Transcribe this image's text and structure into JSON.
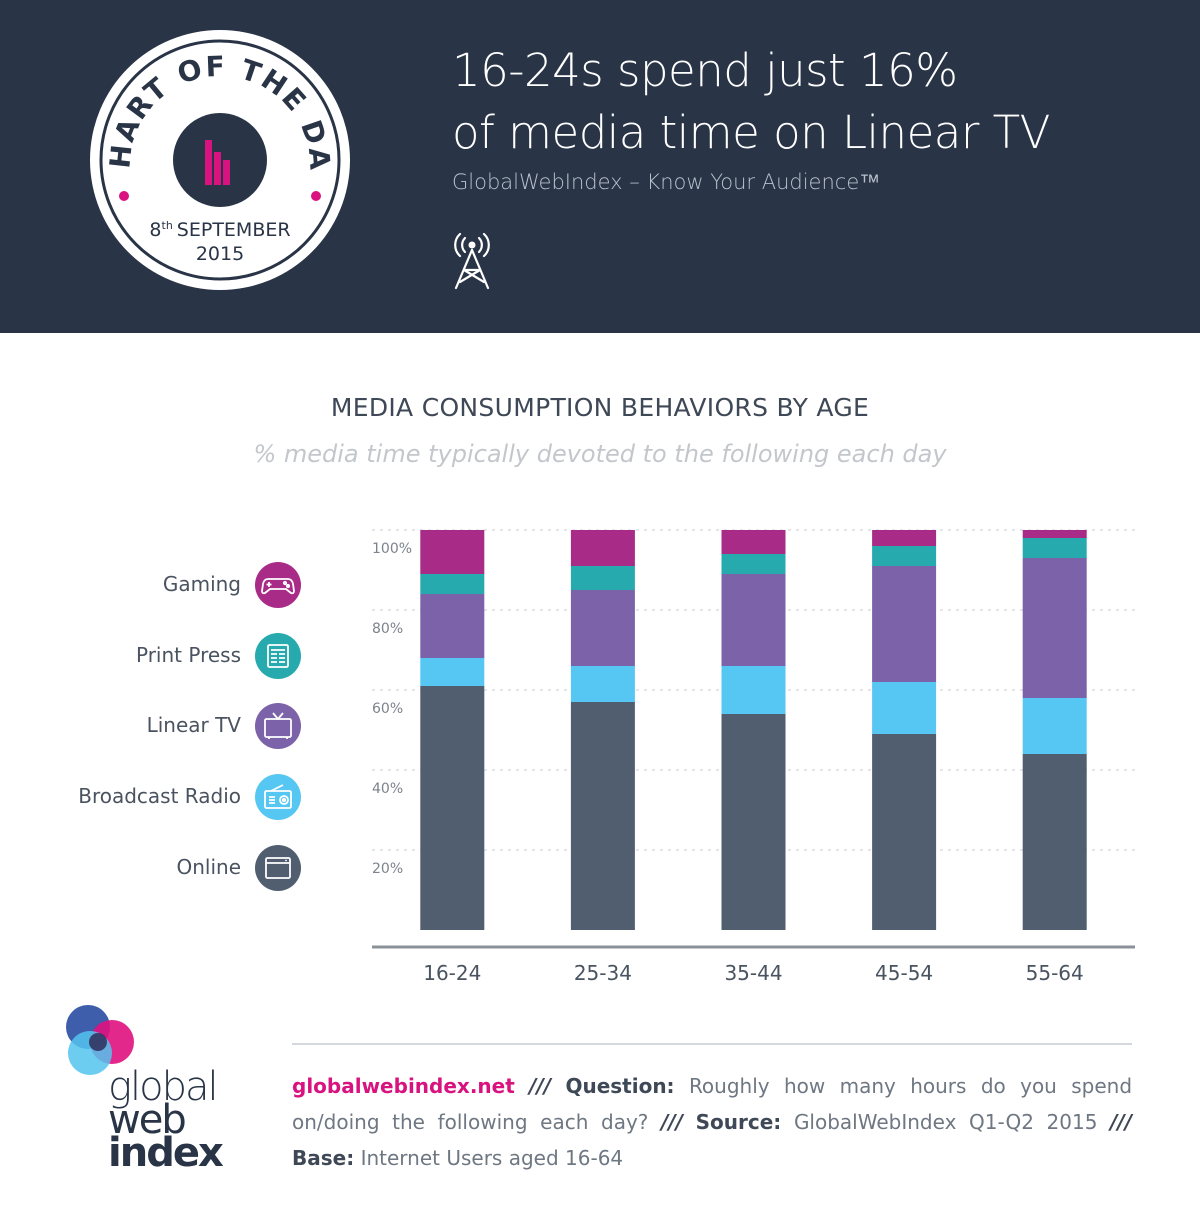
{
  "header": {
    "badge": {
      "ring_text": "CHART OF THE DAY",
      "date_day": "8",
      "date_suffix": "th",
      "date_month": "SEPTEMBER",
      "date_year": "2015"
    },
    "headline_line1": "16-24s spend just 16%",
    "headline_line2": "of media time on Linear TV",
    "tagline": "GlobalWebIndex – Know Your Audience™",
    "icon": "broadcast-tower-icon"
  },
  "chart_data": {
    "type": "bar",
    "stacked": true,
    "title": "MEDIA CONSUMPTION BEHAVIORS BY AGE",
    "subtitle": "% media time typically devoted to the following each day",
    "categories": [
      "16-24",
      "25-34",
      "35-44",
      "45-54",
      "55-64"
    ],
    "series": [
      {
        "name": "Online",
        "color": "#515e6f",
        "icon": "browser-window-icon",
        "values": [
          61,
          57,
          54,
          49,
          44
        ]
      },
      {
        "name": "Broadcast Radio",
        "color": "#56c7f2",
        "icon": "radio-icon",
        "values": [
          7,
          9,
          12,
          13,
          14
        ]
      },
      {
        "name": "Linear TV",
        "color": "#7b62a9",
        "icon": "tv-icon",
        "values": [
          16,
          19,
          23,
          29,
          35
        ]
      },
      {
        "name": "Print Press",
        "color": "#27aaae",
        "icon": "newspaper-icon",
        "values": [
          5,
          6,
          5,
          5,
          5
        ]
      },
      {
        "name": "Gaming",
        "color": "#a82c87",
        "icon": "gamepad-icon",
        "values": [
          11,
          9,
          6,
          4,
          2
        ]
      }
    ],
    "legend_order": [
      "Gaming",
      "Print Press",
      "Linear TV",
      "Broadcast Radio",
      "Online"
    ],
    "ylim": [
      0,
      100
    ],
    "yticks": [
      20,
      40,
      60,
      80,
      100
    ],
    "ytick_labels": [
      "20%",
      "40%",
      "60%",
      "80%",
      "100%"
    ],
    "grid": true,
    "legend_position": "left"
  },
  "footer": {
    "source_site": "globalwebindex.net",
    "separator": "///",
    "question_label": "Question:",
    "question_text": "Roughly how many hours do you spend on/doing the following each day?",
    "source_label": "Source:",
    "source_text": "GlobalWebIndex Q1-Q2 2015",
    "base_label": "Base:",
    "base_text": "Internet Users aged 16-64"
  },
  "logo": {
    "word1": "global",
    "word2": "web",
    "word3": "index"
  }
}
